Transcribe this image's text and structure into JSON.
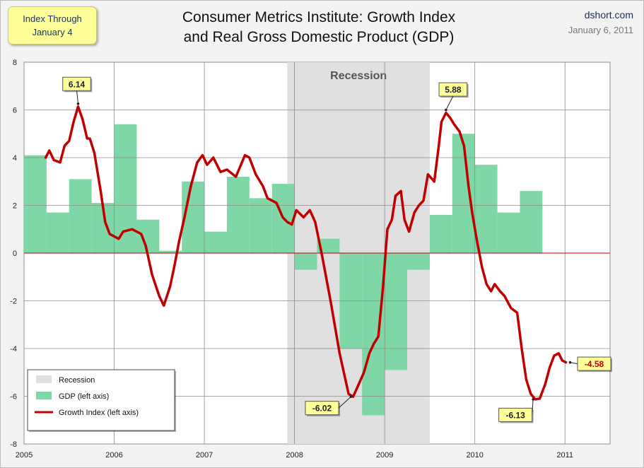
{
  "badge": {
    "line1": "Index Through",
    "line2": "January 4"
  },
  "title": {
    "line1": "Consumer Metrics Institute: Growth Index",
    "line2": "and Real Gross Domestic Product (GDP)"
  },
  "source": {
    "site": "dshort.com",
    "date": "January 6, 2011"
  },
  "chart_data": {
    "type": "bar",
    "xlim": [
      2005,
      2011.5
    ],
    "ylim": [
      -8,
      8
    ],
    "x_ticks": [
      "2005",
      "2006",
      "2007",
      "2008",
      "2009",
      "2010",
      "2011"
    ],
    "y_ticks": [
      "8",
      "6",
      "4",
      "2",
      "0",
      "-2",
      "-4",
      "-6",
      "-8"
    ],
    "grid": true,
    "recession": {
      "label": "Recession",
      "start": 2007.92,
      "end": 2009.5,
      "color": "#e0e0e0"
    },
    "series": [
      {
        "name": "GDP (left axis)",
        "type": "bar",
        "color": "#7fd6a6",
        "quarters": [
          2005.0,
          2005.25,
          2005.5,
          2005.75,
          2006.0,
          2006.25,
          2006.5,
          2006.75,
          2007.0,
          2007.25,
          2007.5,
          2007.75,
          2008.0,
          2008.25,
          2008.5,
          2008.75,
          2009.0,
          2009.25,
          2009.5,
          2009.75,
          2010.0,
          2010.25,
          2010.5
        ],
        "values": [
          4.1,
          1.7,
          3.1,
          2.1,
          5.4,
          1.4,
          0.1,
          3.0,
          0.9,
          3.2,
          2.3,
          2.9,
          -0.7,
          0.6,
          -4.0,
          -6.8,
          -4.9,
          -0.7,
          1.6,
          5.0,
          3.7,
          1.7,
          2.6
        ]
      },
      {
        "name": "Growth Index (left axis)",
        "type": "line",
        "color": "#c00000",
        "x": [
          2005.24,
          2005.28,
          2005.33,
          2005.4,
          2005.45,
          2005.5,
          2005.55,
          2005.6,
          2005.65,
          2005.7,
          2005.73,
          2005.78,
          2005.85,
          2005.9,
          2005.95,
          2006.0,
          2006.05,
          2006.1,
          2006.2,
          2006.3,
          2006.35,
          2006.42,
          2006.5,
          2006.55,
          2006.62,
          2006.67,
          2006.72,
          2006.78,
          2006.85,
          2006.92,
          2006.98,
          2007.03,
          2007.1,
          2007.18,
          2007.25,
          2007.35,
          2007.45,
          2007.5,
          2007.57,
          2007.65,
          2007.7,
          2007.8,
          2007.87,
          2007.92,
          2007.97,
          2008.02,
          2008.1,
          2008.17,
          2008.23,
          2008.3,
          2008.4,
          2008.5,
          2008.6,
          2008.65,
          2008.7,
          2008.77,
          2008.83,
          2008.88,
          2008.93,
          2008.98,
          2009.03,
          2009.08,
          2009.12,
          2009.18,
          2009.22,
          2009.27,
          2009.33,
          2009.38,
          2009.43,
          2009.48,
          2009.55,
          2009.6,
          2009.63,
          2009.68,
          2009.72,
          2009.77,
          2009.83,
          2009.88,
          2009.93,
          2009.97,
          2010.02,
          2010.08,
          2010.13,
          2010.18,
          2010.22,
          2010.28,
          2010.33,
          2010.4,
          2010.47,
          2010.52,
          2010.57,
          2010.62,
          2010.67,
          2010.72,
          2010.78,
          2010.83,
          2010.88,
          2010.93,
          2010.97,
          2011.01
        ],
        "values": [
          4.0,
          4.3,
          3.9,
          3.8,
          4.5,
          4.7,
          5.5,
          6.14,
          5.6,
          4.8,
          4.8,
          4.2,
          2.6,
          1.3,
          0.8,
          0.7,
          0.6,
          0.9,
          1.0,
          0.8,
          0.3,
          -0.9,
          -1.8,
          -2.2,
          -1.4,
          -0.5,
          0.5,
          1.5,
          2.8,
          3.8,
          4.1,
          3.7,
          4.0,
          3.4,
          3.5,
          3.2,
          4.1,
          4.0,
          3.3,
          2.8,
          2.3,
          2.1,
          1.5,
          1.3,
          1.2,
          1.8,
          1.5,
          1.8,
          1.3,
          0.0,
          -2.0,
          -4.2,
          -5.9,
          -6.02,
          -5.6,
          -5.0,
          -4.2,
          -3.8,
          -3.5,
          -1.5,
          1.0,
          1.4,
          2.4,
          2.6,
          1.4,
          0.9,
          1.7,
          2.0,
          2.2,
          3.3,
          3.0,
          4.5,
          5.5,
          5.88,
          5.7,
          5.4,
          5.1,
          4.5,
          2.8,
          1.7,
          0.6,
          -0.6,
          -1.3,
          -1.6,
          -1.3,
          -1.6,
          -1.8,
          -2.3,
          -2.5,
          -4.0,
          -5.3,
          -5.9,
          -6.13,
          -6.1,
          -5.5,
          -4.8,
          -4.3,
          -4.2,
          -4.5,
          -4.58
        ]
      }
    ],
    "annotations": [
      {
        "text": "6.14",
        "x": 2005.6,
        "y": 6.14
      },
      {
        "text": "5.88",
        "x": 2009.68,
        "y": 5.88
      },
      {
        "text": "-6.02",
        "x": 2008.65,
        "y": -6.02
      },
      {
        "text": "-6.13",
        "x": 2010.67,
        "y": -6.13
      },
      {
        "text": "-4.58",
        "x": 2011.01,
        "y": -4.58
      }
    ],
    "legend": {
      "position": "bottom-left",
      "entries": [
        {
          "label": "Recession",
          "kind": "box",
          "color": "#e0e0e0"
        },
        {
          "label": "GDP (left axis)",
          "kind": "box",
          "color": "#7fd6a6"
        },
        {
          "label": "Growth Index (left axis)",
          "kind": "line",
          "color": "#c00000"
        }
      ]
    }
  }
}
